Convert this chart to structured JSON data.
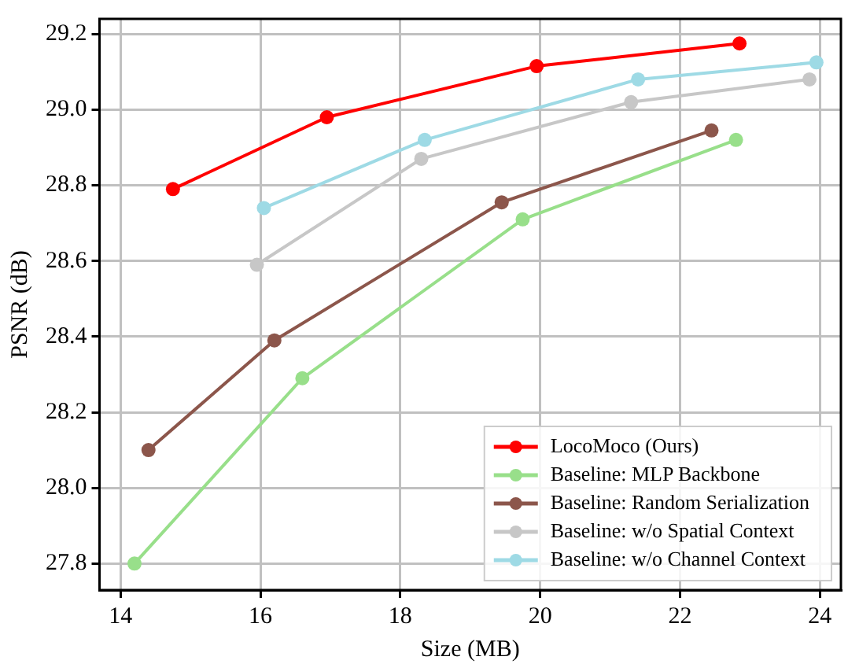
{
  "chart_data": {
    "type": "line",
    "xlabel": "Size (MB)",
    "ylabel": "PSNR (dB)",
    "xlim": [
      13.7,
      24.3
    ],
    "xticks": [
      14,
      16,
      18,
      20,
      22,
      24
    ],
    "ylim": [
      27.73,
      29.24
    ],
    "yticks": [
      {
        "value": 27.8,
        "label": "27.8"
      },
      {
        "value": 28,
        "label": "28.0"
      },
      {
        "value": 28.2,
        "label": "28.2"
      },
      {
        "value": 28.4,
        "label": "28.4"
      },
      {
        "value": 28.6,
        "label": "28.6"
      },
      {
        "value": 28.8,
        "label": "28.8"
      },
      {
        "value": 29,
        "label": "29.0"
      },
      {
        "value": 29.2,
        "label": "29.2"
      }
    ],
    "grid": true,
    "legend": "bottom right",
    "marker": "circle",
    "line_style": "solid",
    "series": [
      {
        "name": "LocoMoco (Ours)",
        "color": "#ff0000",
        "x": [
          14.75,
          16.95,
          19.95,
          22.85
        ],
        "values": [
          28.79,
          28.98,
          29.115,
          29.175
        ]
      },
      {
        "name": "Baseline: MLP Backbone",
        "color": "#98df8a",
        "x": [
          14.2,
          16.6,
          19.75,
          22.8
        ],
        "values": [
          27.8,
          28.29,
          28.71,
          28.92
        ]
      },
      {
        "name": "Baseline: Random Serialization",
        "color": "#8c564b",
        "x": [
          14.4,
          16.2,
          19.45,
          22.45
        ],
        "values": [
          28.1,
          28.39,
          28.755,
          28.945
        ]
      },
      {
        "name": "Baseline: w/o Spatial Context",
        "color": "#c7c7c7",
        "x": [
          15.95,
          18.3,
          21.3,
          23.85
        ],
        "values": [
          28.59,
          28.87,
          29.02,
          29.08
        ]
      },
      {
        "name": "Baseline: w/o Channel Context",
        "color": "#9edae5",
        "x": [
          16.05,
          18.35,
          21.4,
          23.95
        ],
        "values": [
          28.74,
          28.92,
          29.08,
          29.125
        ]
      }
    ]
  }
}
